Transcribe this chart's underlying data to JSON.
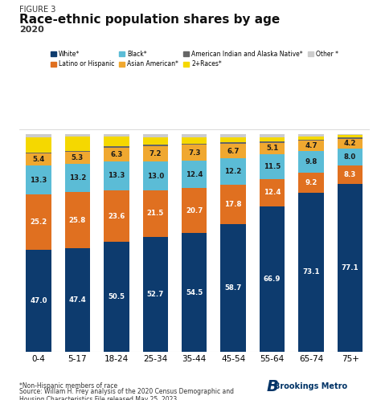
{
  "figure_label": "FIGURE 3",
  "title": "Race-ethnic population shares by age",
  "subtitle": "2020",
  "categories": [
    "0-4",
    "5-17",
    "18-24",
    "25-34",
    "35-44",
    "45-54",
    "55-64",
    "65-74",
    "75+"
  ],
  "series": {
    "White*": [
      47.0,
      47.4,
      50.5,
      52.7,
      54.5,
      58.7,
      66.9,
      73.1,
      77.1
    ],
    "Latino or Hispanic": [
      25.2,
      25.8,
      23.6,
      21.5,
      20.7,
      17.8,
      12.4,
      9.2,
      8.3
    ],
    "Black*": [
      13.3,
      13.2,
      13.3,
      13.0,
      12.4,
      12.2,
      11.5,
      9.8,
      8.0
    ],
    "Asian American*": [
      5.4,
      5.3,
      6.3,
      7.2,
      7.3,
      6.7,
      5.1,
      4.7,
      4.2
    ],
    "American Indian and Alaska Native*": [
      0.6,
      0.6,
      0.6,
      0.6,
      0.6,
      0.6,
      0.6,
      0.6,
      0.6
    ],
    "2+Races*": [
      7.0,
      6.5,
      4.5,
      3.5,
      3.0,
      2.5,
      2.0,
      1.5,
      1.3
    ],
    "Other *": [
      1.5,
      1.2,
      1.2,
      1.5,
      1.5,
      1.5,
      1.5,
      1.1,
      0.5
    ]
  },
  "colors": {
    "White*": "#0d3b6e",
    "Latino or Hispanic": "#e07020",
    "Black*": "#5bbcd6",
    "Asian American*": "#f0a830",
    "American Indian and Alaska Native*": "#666666",
    "2+Races*": "#f5d800",
    "Other *": "#cccccc"
  },
  "footnote1": "*Non-Hispanic members of race",
  "footnote2": "Source: Willam H. Frey analysis of the 2020 Census Demographic and\nHousing Characteristics File released May 25, 2023",
  "background_color": "#ffffff"
}
